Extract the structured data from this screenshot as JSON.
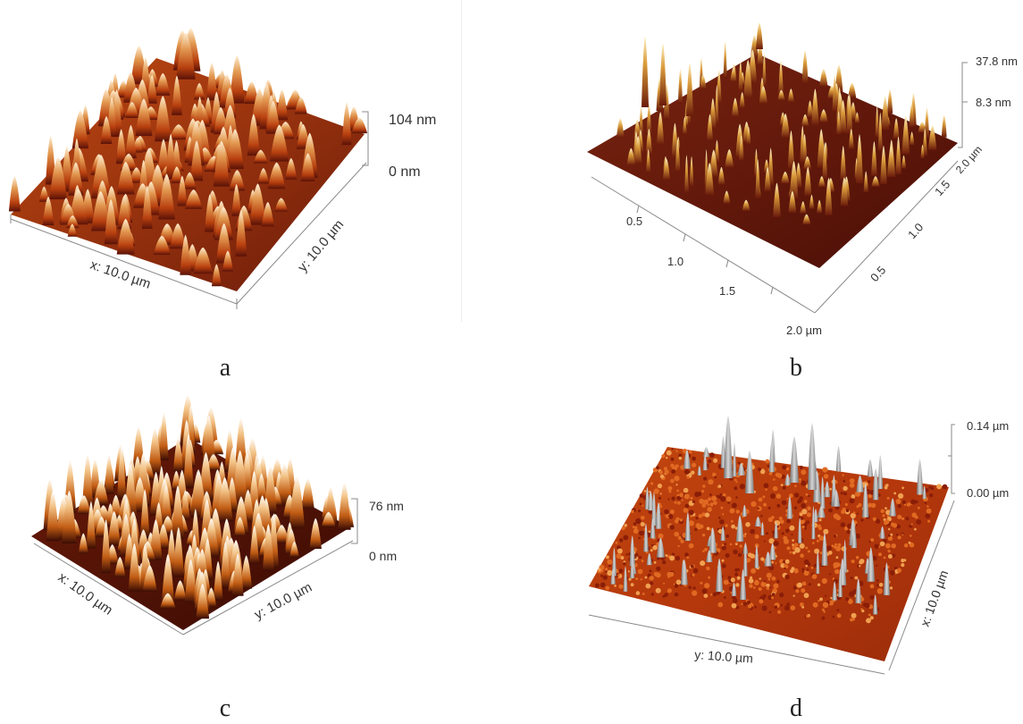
{
  "figure": {
    "panels": [
      {
        "id": "a",
        "caption": "a",
        "scale_top": "104 nm",
        "scale_bottom": "0 nm",
        "axis_x": "x: 10.0 µm",
        "axis_y": "y: 10.0 µm"
      },
      {
        "id": "b",
        "caption": "b",
        "scale_top": "37.8 nm",
        "scale_mid": "8.3 nm",
        "ticks_front": [
          "0.5",
          "1.0",
          "1.5",
          "2.0 µm"
        ],
        "ticks_side": [
          "0.5",
          "1.0",
          "1.5",
          "2.0 µm"
        ]
      },
      {
        "id": "c",
        "caption": "c",
        "scale_top": "76 nm",
        "scale_bottom": "0 nm",
        "axis_x": "x: 10.0 µm",
        "axis_y": "y: 10.0 µm"
      },
      {
        "id": "d",
        "caption": "d",
        "scale_top": "0.14 µm",
        "scale_bottom": "0.00 µm",
        "axis_x": "x: 10.0 µm",
        "axis_y": "y: 10.0 µm"
      }
    ],
    "colors": {
      "surface_dark": "#5a1208",
      "surface_mid": "#b8400f",
      "surface_light": "#e88a3a",
      "peak_highlight": "#fff2d6",
      "spike_gray": "#9a9a9a",
      "axis_line": "#8a8a8a"
    }
  }
}
